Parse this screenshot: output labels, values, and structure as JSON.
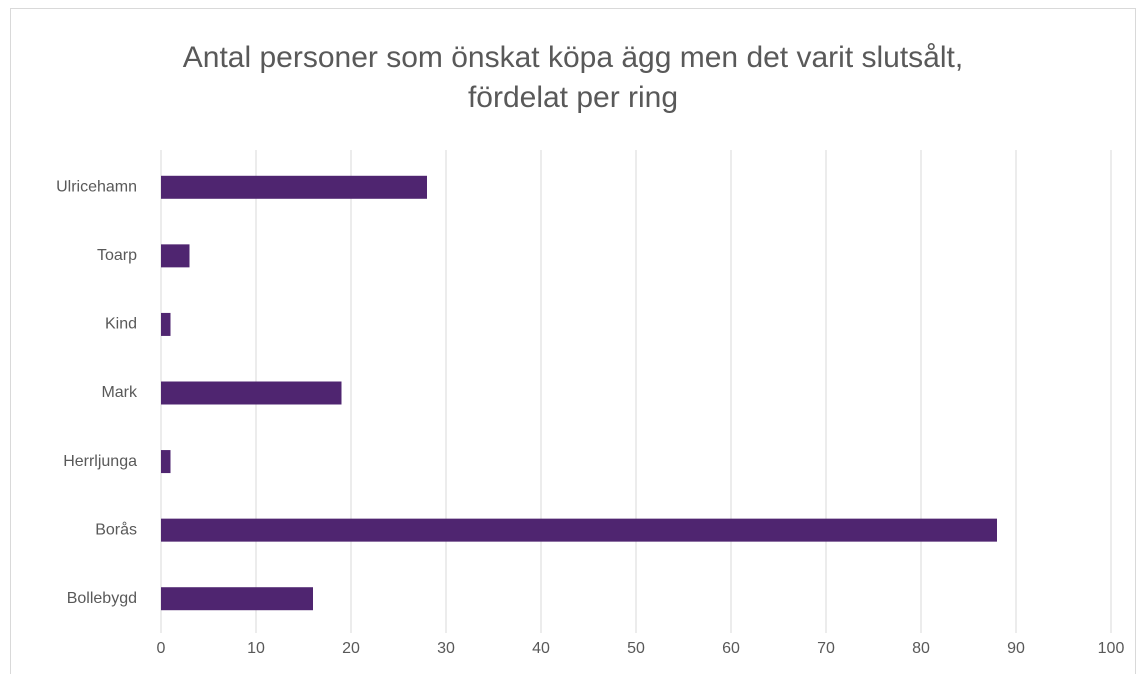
{
  "chart_data": {
    "type": "bar",
    "orientation": "horizontal",
    "title": "Antal personer som önskat köpa ägg men det varit slutsålt, fördelat per ring",
    "categories": [
      "Ulricehamn",
      "Toarp",
      "Kind",
      "Mark",
      "Herrljunga",
      "Borås",
      "Bollebygd"
    ],
    "values": [
      28,
      3,
      1,
      19,
      1,
      88,
      16
    ],
    "color": "#4f2570",
    "xlim": [
      0,
      100
    ],
    "xticks": [
      0,
      10,
      20,
      30,
      40,
      50,
      60,
      70,
      80,
      90,
      100
    ],
    "grid": true
  }
}
